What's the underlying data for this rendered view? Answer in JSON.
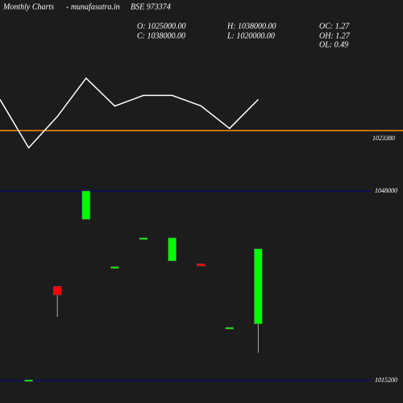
{
  "header": {
    "title": "Monthly Charts",
    "site": "- munafasutra.in",
    "symbol": "BSE 973374",
    "open": "O: 1025000.00",
    "close": "C: 1038000.00",
    "high": "H: 1038000.00",
    "low": "L: 1020000.00",
    "oc": "OC: 1.27",
    "oh": "OH: 1.27",
    "ol": "OL: 0.49"
  },
  "chart_data": [
    {
      "type": "line",
      "color": "#ffffff",
      "values": [
        1038000,
        1015300,
        1030000,
        1048000,
        1034900,
        1039900,
        1039900,
        1035000,
        1024400,
        1038000
      ],
      "ylim": [
        1009000,
        1062000
      ],
      "hline": {
        "value": 1023380,
        "color": "#ff8c00"
      }
    },
    {
      "type": "candlestick",
      "up_color": "#00ff00",
      "down_color": "#ff0000",
      "grid_color": "#00008b",
      "open": [
        1015100,
        1031500,
        1043100,
        1034600,
        1039600,
        1035900,
        1035400,
        1024100,
        1025000
      ],
      "high": [
        1015300,
        1031500,
        1048000,
        1034900,
        1039900,
        1039900,
        1035400,
        1024400,
        1038000
      ],
      "low": [
        1015100,
        1026200,
        1043100,
        1034600,
        1039600,
        1035900,
        1035000,
        1024100,
        1020000
      ],
      "close": [
        1015300,
        1030000,
        1048000,
        1034900,
        1039900,
        1039900,
        1035000,
        1024400,
        1038000
      ],
      "ylim": [
        1011300,
        1053160
      ],
      "yticks": [
        1015200,
        1048000
      ]
    }
  ]
}
